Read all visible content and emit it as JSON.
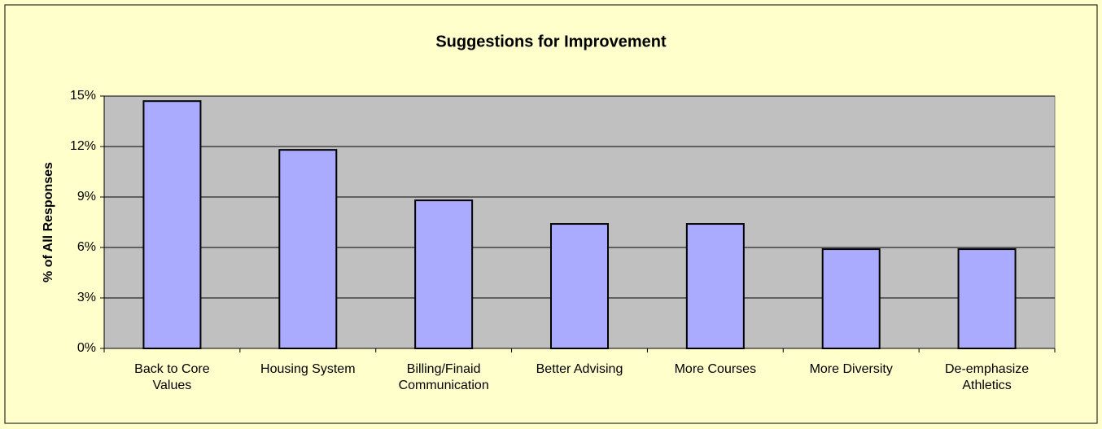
{
  "chart_data": {
    "type": "bar",
    "title": "Suggestions for Improvement",
    "y_label": "% of All Responses",
    "categories": [
      "Back to Core Values",
      "Housing System",
      "Billing/Finaid Communication",
      "Better Advising",
      "More Courses",
      "More Diversity",
      "De-emphasize Athletics"
    ],
    "values": [
      14.7,
      11.8,
      8.8,
      7.4,
      7.4,
      5.9,
      5.9
    ],
    "color": "#aaaaff",
    "ylim": [
      0,
      15
    ],
    "yticks": [
      {
        "value": 0,
        "label": "0%"
      },
      {
        "value": 3,
        "label": "3%"
      },
      {
        "value": 6,
        "label": "6%"
      },
      {
        "value": 9,
        "label": "9%"
      },
      {
        "value": 12,
        "label": "12%"
      },
      {
        "value": 15,
        "label": "15%"
      }
    ],
    "grid": true
  }
}
